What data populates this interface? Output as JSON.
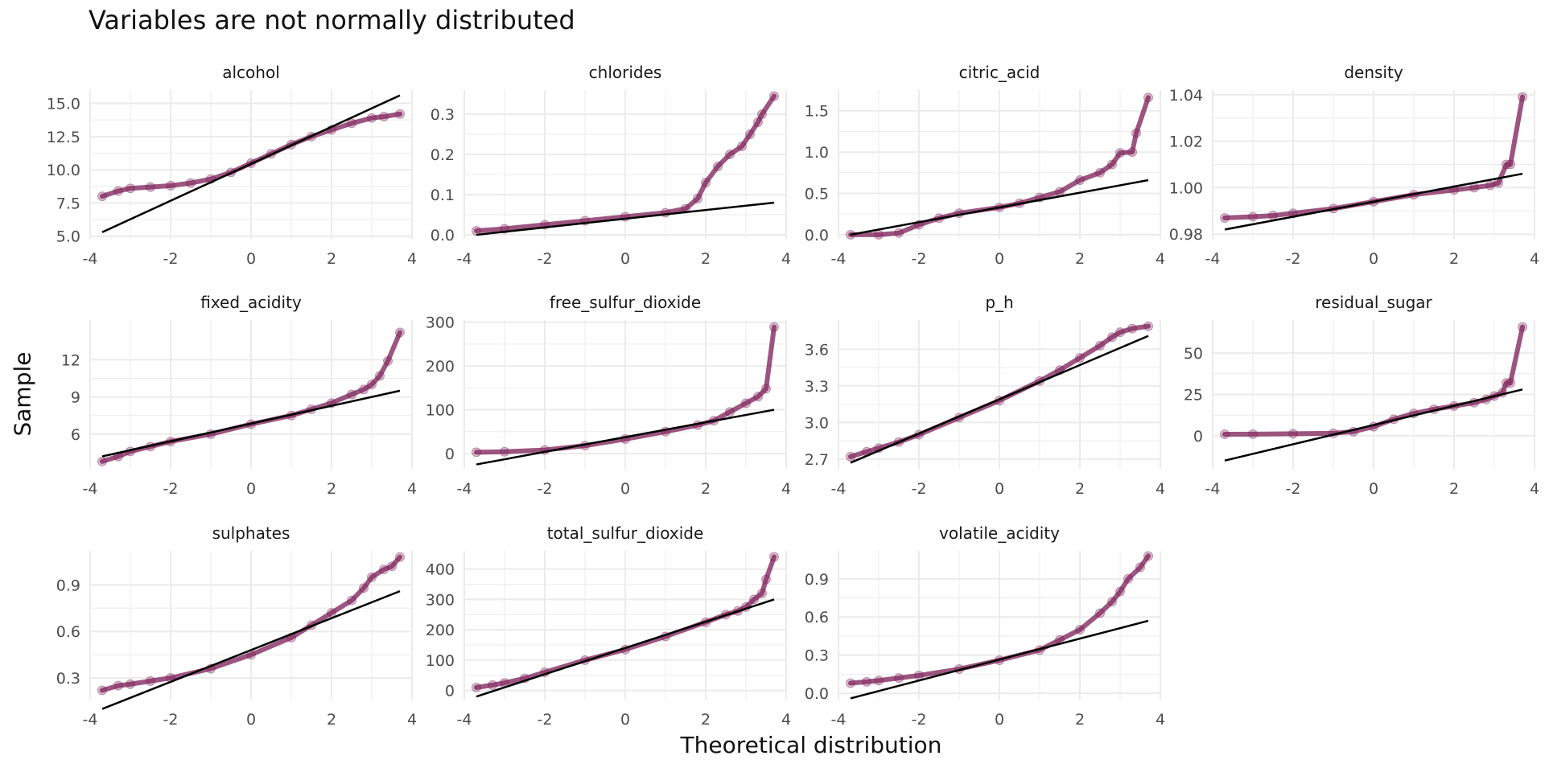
{
  "chart_data": {
    "type": "scatter",
    "title": "Variables are not normally distributed",
    "xlabel": "Theoretical distribution",
    "ylabel": "Sample",
    "colors": {
      "points": "#7b1c55",
      "line": "#000000",
      "grid": "#ebebeb",
      "text": "#4d4d4d"
    },
    "grid": true,
    "xlim": [
      -4,
      4
    ],
    "xticks": [
      -4,
      -2,
      0,
      2,
      4
    ],
    "panels": [
      {
        "name": "alcohol",
        "ylim": [
          4.8,
          16.0
        ],
        "yticks": [
          5.0,
          7.5,
          10.0,
          12.5,
          15.0
        ],
        "ytick_labels": [
          "5.0",
          "7.5",
          "10.0",
          "12.5",
          "15.0"
        ],
        "line": [
          [
            -3.7,
            5.3
          ],
          [
            3.7,
            15.6
          ]
        ],
        "points": [
          [
            -3.7,
            8.0
          ],
          [
            -3.3,
            8.4
          ],
          [
            -3.0,
            8.6
          ],
          [
            -2.5,
            8.7
          ],
          [
            -2.0,
            8.8
          ],
          [
            -1.5,
            9.0
          ],
          [
            -1.0,
            9.3
          ],
          [
            -0.5,
            9.8
          ],
          [
            0.0,
            10.5
          ],
          [
            0.5,
            11.2
          ],
          [
            1.0,
            11.9
          ],
          [
            1.5,
            12.5
          ],
          [
            2.0,
            13.0
          ],
          [
            2.5,
            13.5
          ],
          [
            3.0,
            13.9
          ],
          [
            3.3,
            14.0
          ],
          [
            3.7,
            14.2
          ]
        ]
      },
      {
        "name": "chlorides",
        "ylim": [
          -0.01,
          0.36
        ],
        "yticks": [
          0.0,
          0.1,
          0.2,
          0.3
        ],
        "ytick_labels": [
          "0.0",
          "0.1",
          "0.2",
          "0.3"
        ],
        "line": [
          [
            -3.7,
            0.0
          ],
          [
            3.7,
            0.08
          ]
        ],
        "points": [
          [
            -3.7,
            0.01
          ],
          [
            -3.0,
            0.015
          ],
          [
            -2.0,
            0.025
          ],
          [
            -1.0,
            0.035
          ],
          [
            0.0,
            0.045
          ],
          [
            1.0,
            0.055
          ],
          [
            1.5,
            0.065
          ],
          [
            1.8,
            0.09
          ],
          [
            2.0,
            0.13
          ],
          [
            2.3,
            0.17
          ],
          [
            2.6,
            0.2
          ],
          [
            2.9,
            0.22
          ],
          [
            3.1,
            0.25
          ],
          [
            3.3,
            0.28
          ],
          [
            3.4,
            0.3
          ],
          [
            3.7,
            0.345
          ]
        ]
      },
      {
        "name": "citric_acid",
        "ylim": [
          -0.05,
          1.75
        ],
        "yticks": [
          0.0,
          0.5,
          1.0,
          1.5
        ],
        "ytick_labels": [
          "0.0",
          "0.5",
          "1.0",
          "1.5"
        ],
        "line": [
          [
            -3.7,
            0.0
          ],
          [
            3.7,
            0.66
          ]
        ],
        "points": [
          [
            -3.7,
            0.0
          ],
          [
            -3.0,
            0.0
          ],
          [
            -2.5,
            0.02
          ],
          [
            -2.0,
            0.12
          ],
          [
            -1.5,
            0.2
          ],
          [
            -1.0,
            0.26
          ],
          [
            0.0,
            0.33
          ],
          [
            0.5,
            0.38
          ],
          [
            1.0,
            0.45
          ],
          [
            1.5,
            0.52
          ],
          [
            2.0,
            0.66
          ],
          [
            2.5,
            0.75
          ],
          [
            2.8,
            0.85
          ],
          [
            3.0,
            0.99
          ],
          [
            3.3,
            1.0
          ],
          [
            3.4,
            1.23
          ],
          [
            3.7,
            1.66
          ]
        ]
      },
      {
        "name": "density",
        "ylim": [
          0.978,
          1.042
        ],
        "yticks": [
          0.98,
          1.0,
          1.02,
          1.04
        ],
        "ytick_labels": [
          "0.98",
          "1.00",
          "1.02",
          "1.04"
        ],
        "line": [
          [
            -3.7,
            0.982
          ],
          [
            3.7,
            1.006
          ]
        ],
        "points": [
          [
            -3.7,
            0.987
          ],
          [
            -3.0,
            0.9875
          ],
          [
            -2.5,
            0.988
          ],
          [
            -2.0,
            0.989
          ],
          [
            -1.0,
            0.991
          ],
          [
            0.0,
            0.994
          ],
          [
            1.0,
            0.997
          ],
          [
            2.0,
            0.999
          ],
          [
            2.5,
            1.0
          ],
          [
            2.9,
            1.001
          ],
          [
            3.1,
            1.002
          ],
          [
            3.3,
            1.01
          ],
          [
            3.4,
            1.01
          ],
          [
            3.7,
            1.039
          ]
        ]
      },
      {
        "name": "fixed_acidity",
        "ylim": [
          3.2,
          15.2
        ],
        "yticks": [
          6,
          9,
          12
        ],
        "ytick_labels": [
          "6",
          "9",
          "12"
        ],
        "line": [
          [
            -3.7,
            4.2
          ],
          [
            3.7,
            9.5
          ]
        ],
        "points": [
          [
            -3.7,
            3.8
          ],
          [
            -3.3,
            4.2
          ],
          [
            -3.0,
            4.6
          ],
          [
            -2.5,
            5.0
          ],
          [
            -2.0,
            5.4
          ],
          [
            -1.0,
            6.0
          ],
          [
            0.0,
            6.8
          ],
          [
            1.0,
            7.5
          ],
          [
            1.5,
            8.0
          ],
          [
            2.0,
            8.5
          ],
          [
            2.5,
            9.2
          ],
          [
            2.8,
            9.6
          ],
          [
            3.0,
            10.0
          ],
          [
            3.2,
            10.7
          ],
          [
            3.4,
            11.9
          ],
          [
            3.7,
            14.2
          ]
        ]
      },
      {
        "name": "free_sulfur_dioxide",
        "ylim": [
          -35,
          305
        ],
        "yticks": [
          0,
          100,
          200,
          300
        ],
        "ytick_labels": [
          "0",
          "100",
          "200",
          "300"
        ],
        "line": [
          [
            -3.7,
            -25
          ],
          [
            3.7,
            100
          ]
        ],
        "points": [
          [
            -3.7,
            3
          ],
          [
            -3.0,
            4
          ],
          [
            -2.0,
            8
          ],
          [
            -1.0,
            18
          ],
          [
            0.0,
            33
          ],
          [
            1.0,
            50
          ],
          [
            1.8,
            65
          ],
          [
            2.2,
            75
          ],
          [
            2.6,
            95
          ],
          [
            3.0,
            115
          ],
          [
            3.3,
            130
          ],
          [
            3.5,
            148
          ],
          [
            3.7,
            289
          ]
        ]
      },
      {
        "name": "p_h",
        "ylim": [
          2.62,
          3.84
        ],
        "yticks": [
          2.7,
          3.0,
          3.3,
          3.6
        ],
        "ytick_labels": [
          "2.7",
          "3.0",
          "3.3",
          "3.6"
        ],
        "line": [
          [
            -3.7,
            2.67
          ],
          [
            3.7,
            3.71
          ]
        ],
        "points": [
          [
            -3.7,
            2.72
          ],
          [
            -3.3,
            2.76
          ],
          [
            -3.0,
            2.79
          ],
          [
            -2.5,
            2.84
          ],
          [
            -2.0,
            2.9
          ],
          [
            -1.0,
            3.04
          ],
          [
            0.0,
            3.18
          ],
          [
            1.0,
            3.34
          ],
          [
            1.5,
            3.43
          ],
          [
            2.0,
            3.53
          ],
          [
            2.5,
            3.63
          ],
          [
            2.8,
            3.7
          ],
          [
            3.0,
            3.74
          ],
          [
            3.3,
            3.77
          ],
          [
            3.7,
            3.79
          ]
        ]
      },
      {
        "name": "residual_sugar",
        "ylim": [
          -20,
          70
        ],
        "yticks": [
          0,
          25,
          50
        ],
        "ytick_labels": [
          "0",
          "25",
          "50"
        ],
        "line": [
          [
            -3.7,
            -15
          ],
          [
            3.7,
            28
          ]
        ],
        "points": [
          [
            -3.7,
            0.9
          ],
          [
            -3.0,
            1.0
          ],
          [
            -2.0,
            1.2
          ],
          [
            -1.0,
            1.5
          ],
          [
            -0.5,
            2.5
          ],
          [
            0.0,
            5.5
          ],
          [
            0.5,
            10
          ],
          [
            1.0,
            13.5
          ],
          [
            1.5,
            16
          ],
          [
            2.0,
            18
          ],
          [
            2.5,
            20
          ],
          [
            2.8,
            22
          ],
          [
            3.0,
            24
          ],
          [
            3.2,
            26
          ],
          [
            3.3,
            32
          ],
          [
            3.4,
            32
          ],
          [
            3.7,
            65.8
          ]
        ]
      },
      {
        "name": "sulphates",
        "ylim": [
          0.16,
          1.12
        ],
        "yticks": [
          0.3,
          0.6,
          0.9
        ],
        "ytick_labels": [
          "0.3",
          "0.6",
          "0.9"
        ],
        "line": [
          [
            -3.7,
            0.1
          ],
          [
            3.7,
            0.86
          ]
        ],
        "points": [
          [
            -3.7,
            0.22
          ],
          [
            -3.3,
            0.25
          ],
          [
            -3.0,
            0.26
          ],
          [
            -2.5,
            0.28
          ],
          [
            -2.0,
            0.3
          ],
          [
            -1.0,
            0.36
          ],
          [
            0.0,
            0.45
          ],
          [
            1.0,
            0.56
          ],
          [
            1.5,
            0.64
          ],
          [
            2.0,
            0.72
          ],
          [
            2.5,
            0.8
          ],
          [
            2.8,
            0.88
          ],
          [
            3.0,
            0.95
          ],
          [
            3.3,
            1.0
          ],
          [
            3.5,
            1.02
          ],
          [
            3.7,
            1.08
          ]
        ]
      },
      {
        "name": "total_sulfur_dioxide",
        "ylim": [
          -30,
          460
        ],
        "yticks": [
          0,
          100,
          200,
          300,
          400
        ],
        "ytick_labels": [
          "0",
          "100",
          "200",
          "300",
          "400"
        ],
        "line": [
          [
            -3.7,
            -20
          ],
          [
            3.7,
            300
          ]
        ],
        "points": [
          [
            -3.7,
            10
          ],
          [
            -3.3,
            18
          ],
          [
            -3.0,
            25
          ],
          [
            -2.5,
            40
          ],
          [
            -2.0,
            60
          ],
          [
            -1.0,
            100
          ],
          [
            0.0,
            135
          ],
          [
            1.0,
            178
          ],
          [
            2.0,
            225
          ],
          [
            2.5,
            250
          ],
          [
            2.8,
            262
          ],
          [
            3.0,
            275
          ],
          [
            3.2,
            300
          ],
          [
            3.4,
            320
          ],
          [
            3.5,
            366
          ],
          [
            3.7,
            440
          ]
        ]
      },
      {
        "name": "volatile_acidity",
        "ylim": [
          -0.05,
          1.12
        ],
        "yticks": [
          0.0,
          0.3,
          0.6,
          0.9
        ],
        "ytick_labels": [
          "0.0",
          "0.3",
          "0.6",
          "0.9"
        ],
        "line": [
          [
            -3.7,
            -0.04
          ],
          [
            3.7,
            0.57
          ]
        ],
        "points": [
          [
            -3.7,
            0.08
          ],
          [
            -3.3,
            0.09
          ],
          [
            -3.0,
            0.1
          ],
          [
            -2.5,
            0.12
          ],
          [
            -2.0,
            0.14
          ],
          [
            -1.0,
            0.19
          ],
          [
            0.0,
            0.26
          ],
          [
            1.0,
            0.34
          ],
          [
            1.5,
            0.42
          ],
          [
            2.0,
            0.5
          ],
          [
            2.5,
            0.63
          ],
          [
            2.8,
            0.72
          ],
          [
            3.0,
            0.8
          ],
          [
            3.2,
            0.9
          ],
          [
            3.5,
            0.99
          ],
          [
            3.7,
            1.08
          ]
        ]
      }
    ]
  }
}
